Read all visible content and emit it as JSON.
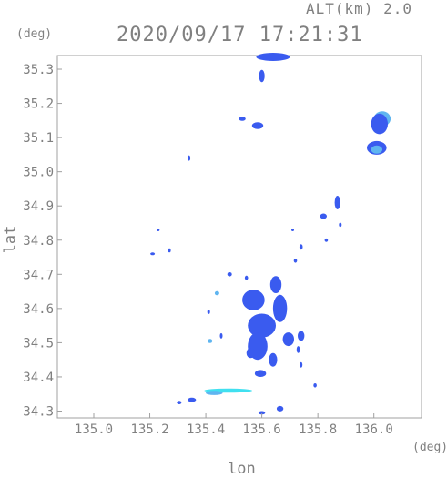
{
  "header": {
    "altitude_text": "ALT(km)  2.0",
    "timestamp": "2020/09/17 17:21:31",
    "y_unit": "(deg)",
    "x_unit": "(deg)"
  },
  "chart_data": {
    "type": "heatmap",
    "title": "2020/09/17 17:21:31",
    "subtitle": "ALT(km)  2.0",
    "xlabel": "lon",
    "ylabel": "lat",
    "xunit": "(deg)",
    "yunit": "(deg)",
    "xlim": [
      134.87,
      136.17
    ],
    "ylim": [
      34.28,
      35.34
    ],
    "xticks": [
      135.0,
      135.2,
      135.4,
      135.6,
      135.8,
      136.0
    ],
    "xtick_labels": [
      "135.0",
      "135.2",
      "135.4",
      "135.6",
      "135.8",
      "136.0"
    ],
    "yticks": [
      34.3,
      34.4,
      34.5,
      34.6,
      34.7,
      34.8,
      34.9,
      35.0,
      35.1,
      35.2,
      35.3
    ],
    "ytick_labels": [
      "34.3",
      "34.4",
      "34.5",
      "34.6",
      "34.7",
      "34.8",
      "34.9",
      "35.0",
      "35.1",
      "35.2",
      "35.3"
    ],
    "grid": false,
    "colors": {
      "frame": "#a0a0a0",
      "echo_main": "#3a5bef",
      "echo_light": "#5fb5f0",
      "echo_cyan": "#40e0f0"
    },
    "echoes": [
      {
        "lon": 135.64,
        "lat": 35.336,
        "rx": 0.06,
        "ry": 0.012,
        "level": "main"
      },
      {
        "lon": 135.6,
        "lat": 35.28,
        "rx": 0.01,
        "ry": 0.018,
        "level": "main"
      },
      {
        "lon": 135.53,
        "lat": 35.155,
        "rx": 0.012,
        "ry": 0.006,
        "level": "main"
      },
      {
        "lon": 135.585,
        "lat": 35.135,
        "rx": 0.02,
        "ry": 0.01,
        "level": "main"
      },
      {
        "lon": 135.34,
        "lat": 35.04,
        "rx": 0.004,
        "ry": 0.008,
        "level": "main"
      },
      {
        "lon": 136.03,
        "lat": 35.155,
        "rx": 0.03,
        "ry": 0.022,
        "level": "light"
      },
      {
        "lon": 136.02,
        "lat": 35.14,
        "rx": 0.03,
        "ry": 0.03,
        "level": "main"
      },
      {
        "lon": 136.01,
        "lat": 35.07,
        "rx": 0.035,
        "ry": 0.02,
        "level": "main"
      },
      {
        "lon": 136.01,
        "lat": 35.065,
        "rx": 0.02,
        "ry": 0.012,
        "level": "light"
      },
      {
        "lon": 135.87,
        "lat": 34.91,
        "rx": 0.01,
        "ry": 0.02,
        "level": "main"
      },
      {
        "lon": 135.82,
        "lat": 34.87,
        "rx": 0.012,
        "ry": 0.008,
        "level": "main"
      },
      {
        "lon": 135.88,
        "lat": 34.845,
        "rx": 0.005,
        "ry": 0.006,
        "level": "main"
      },
      {
        "lon": 135.71,
        "lat": 34.83,
        "rx": 0.004,
        "ry": 0.004,
        "level": "main"
      },
      {
        "lon": 135.83,
        "lat": 34.8,
        "rx": 0.006,
        "ry": 0.005,
        "level": "main"
      },
      {
        "lon": 135.74,
        "lat": 34.78,
        "rx": 0.006,
        "ry": 0.008,
        "level": "main"
      },
      {
        "lon": 135.72,
        "lat": 34.74,
        "rx": 0.006,
        "ry": 0.006,
        "level": "main"
      },
      {
        "lon": 135.23,
        "lat": 34.83,
        "rx": 0.005,
        "ry": 0.004,
        "level": "main"
      },
      {
        "lon": 135.27,
        "lat": 34.77,
        "rx": 0.004,
        "ry": 0.006,
        "level": "main"
      },
      {
        "lon": 135.21,
        "lat": 34.76,
        "rx": 0.008,
        "ry": 0.004,
        "level": "main"
      },
      {
        "lon": 135.485,
        "lat": 34.7,
        "rx": 0.008,
        "ry": 0.006,
        "level": "main"
      },
      {
        "lon": 135.545,
        "lat": 34.69,
        "rx": 0.006,
        "ry": 0.006,
        "level": "main"
      },
      {
        "lon": 135.65,
        "lat": 34.67,
        "rx": 0.02,
        "ry": 0.025,
        "level": "main"
      },
      {
        "lon": 135.57,
        "lat": 34.625,
        "rx": 0.04,
        "ry": 0.03,
        "level": "main"
      },
      {
        "lon": 135.665,
        "lat": 34.6,
        "rx": 0.025,
        "ry": 0.04,
        "level": "main"
      },
      {
        "lon": 135.6,
        "lat": 34.55,
        "rx": 0.05,
        "ry": 0.035,
        "level": "main"
      },
      {
        "lon": 135.585,
        "lat": 34.49,
        "rx": 0.035,
        "ry": 0.04,
        "level": "main"
      },
      {
        "lon": 135.56,
        "lat": 34.47,
        "rx": 0.015,
        "ry": 0.015,
        "level": "main"
      },
      {
        "lon": 135.64,
        "lat": 34.45,
        "rx": 0.015,
        "ry": 0.02,
        "level": "main"
      },
      {
        "lon": 135.695,
        "lat": 34.51,
        "rx": 0.02,
        "ry": 0.02,
        "level": "main"
      },
      {
        "lon": 135.74,
        "lat": 34.52,
        "rx": 0.012,
        "ry": 0.015,
        "level": "main"
      },
      {
        "lon": 135.73,
        "lat": 34.48,
        "rx": 0.006,
        "ry": 0.01,
        "level": "main"
      },
      {
        "lon": 135.74,
        "lat": 34.435,
        "rx": 0.004,
        "ry": 0.008,
        "level": "main"
      },
      {
        "lon": 135.44,
        "lat": 34.645,
        "rx": 0.008,
        "ry": 0.006,
        "level": "light"
      },
      {
        "lon": 135.41,
        "lat": 34.59,
        "rx": 0.005,
        "ry": 0.006,
        "level": "main"
      },
      {
        "lon": 135.415,
        "lat": 34.505,
        "rx": 0.008,
        "ry": 0.006,
        "level": "light"
      },
      {
        "lon": 135.455,
        "lat": 34.52,
        "rx": 0.004,
        "ry": 0.008,
        "level": "main"
      },
      {
        "lon": 135.595,
        "lat": 34.41,
        "rx": 0.02,
        "ry": 0.01,
        "level": "main"
      },
      {
        "lon": 135.79,
        "lat": 34.375,
        "rx": 0.006,
        "ry": 0.006,
        "level": "main"
      },
      {
        "lon": 135.48,
        "lat": 34.36,
        "rx": 0.085,
        "ry": 0.006,
        "level": "cyan"
      },
      {
        "lon": 135.43,
        "lat": 34.353,
        "rx": 0.03,
        "ry": 0.006,
        "level": "light"
      },
      {
        "lon": 135.35,
        "lat": 34.333,
        "rx": 0.015,
        "ry": 0.006,
        "level": "main"
      },
      {
        "lon": 135.305,
        "lat": 34.325,
        "rx": 0.008,
        "ry": 0.005,
        "level": "main"
      },
      {
        "lon": 135.665,
        "lat": 34.307,
        "rx": 0.012,
        "ry": 0.008,
        "level": "main"
      },
      {
        "lon": 135.6,
        "lat": 34.295,
        "rx": 0.012,
        "ry": 0.005,
        "level": "main"
      }
    ]
  }
}
